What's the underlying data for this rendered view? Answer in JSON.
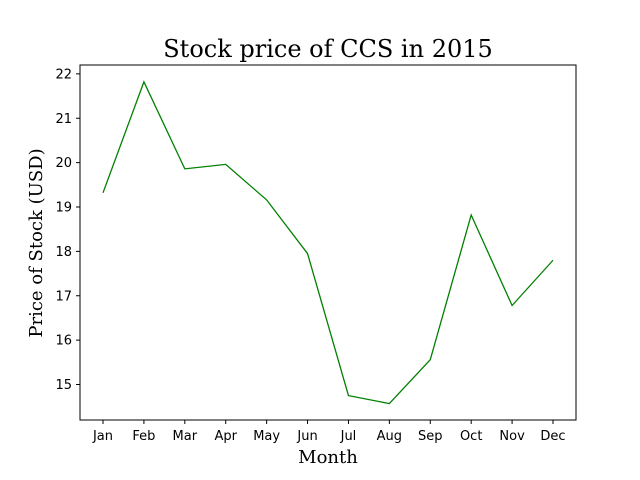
{
  "chart_data": {
    "type": "line",
    "title": "Stock price of CCS in 2015",
    "xlabel": "Month",
    "ylabel": "Price of Stock (USD)",
    "categories": [
      "Jan",
      "Feb",
      "Mar",
      "Apr",
      "May",
      "Jun",
      "Jul",
      "Aug",
      "Sep",
      "Oct",
      "Nov",
      "Dec"
    ],
    "series": [
      {
        "color": "#008000",
        "values": [
          19.32,
          21.82,
          19.86,
          19.96,
          19.16,
          17.95,
          14.75,
          14.57,
          15.56,
          18.82,
          16.78,
          17.8
        ]
      }
    ],
    "ylim": [
      14.2,
      22.2
    ],
    "yticks": [
      15,
      16,
      17,
      18,
      19,
      20,
      21,
      22
    ],
    "grid": false,
    "legend": "none"
  }
}
